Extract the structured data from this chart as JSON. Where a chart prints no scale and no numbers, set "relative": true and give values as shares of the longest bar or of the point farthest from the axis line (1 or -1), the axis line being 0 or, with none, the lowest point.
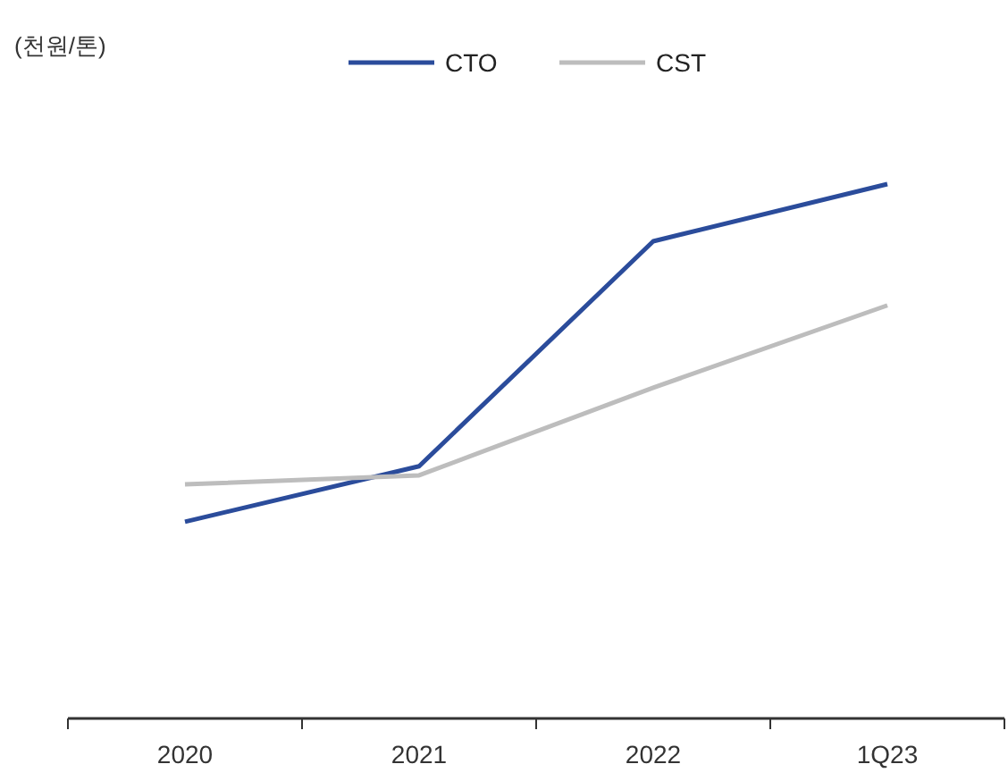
{
  "chart_data": {
    "type": "line",
    "annotations": [
      "(천원/톤)"
    ],
    "relative": true,
    "categories": [
      "2020",
      "2021",
      "2022",
      "1Q23"
    ],
    "legend": "top",
    "marker": "none",
    "series": [
      {
        "name": "CTO",
        "color": "#2b4c9b",
        "values": [
          0.368,
          0.472,
          0.893,
          1
        ]
      },
      {
        "name": "CST",
        "color": "#bdbdbd",
        "values": [
          0.438,
          0.455,
          0.619,
          0.773
        ]
      }
    ]
  }
}
